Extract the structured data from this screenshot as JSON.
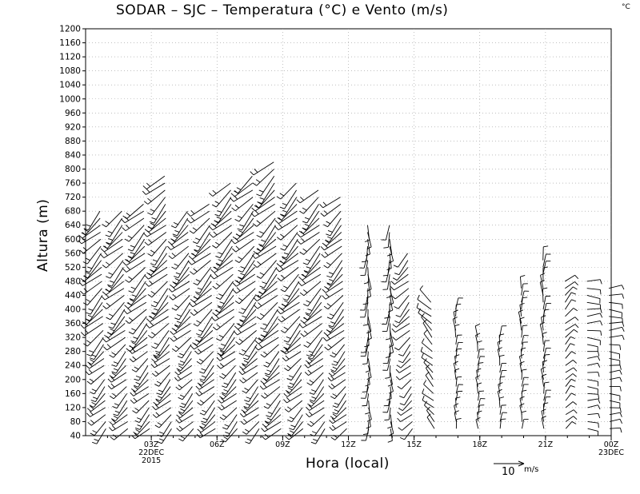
{
  "chart_data": {
    "type": "wind-barb",
    "title": "SODAR – SJC – Temperatura (°C) e Vento (m/s)",
    "corner_unit": "°C",
    "xlabel": "Hora (local)",
    "ylabel": "Altura (m)",
    "ylim": [
      40,
      1200
    ],
    "y_ticks": [
      40,
      80,
      120,
      160,
      200,
      240,
      280,
      320,
      360,
      400,
      440,
      480,
      520,
      560,
      600,
      640,
      680,
      720,
      760,
      800,
      840,
      880,
      920,
      960,
      1000,
      1040,
      1080,
      1120,
      1160,
      1200
    ],
    "xlim_hours": [
      0,
      24
    ],
    "x_ticks": [
      {
        "hour": 3,
        "label": "03Z",
        "sub": [
          "22DEC",
          "2015"
        ]
      },
      {
        "hour": 6,
        "label": "06Z",
        "sub": []
      },
      {
        "hour": 9,
        "label": "09Z",
        "sub": []
      },
      {
        "hour": 12,
        "label": "12Z",
        "sub": []
      },
      {
        "hour": 15,
        "label": "15Z",
        "sub": []
      },
      {
        "hour": 18,
        "label": "18Z",
        "sub": []
      },
      {
        "hour": 21,
        "label": "21Z",
        "sub": []
      },
      {
        "hour": 24,
        "label": "00Z",
        "sub": [
          "23DEC"
        ]
      }
    ],
    "grid": true,
    "reference_vector": {
      "speed": 10,
      "label": "10",
      "unit": "m/s"
    },
    "profiles": [
      {
        "hour": 1,
        "top": 680,
        "dir": "SW",
        "speed": 9
      },
      {
        "hour": 2,
        "top": 680,
        "dir": "SW",
        "speed": 9
      },
      {
        "hour": 3,
        "top": 700,
        "dir": "SW",
        "speed": 9
      },
      {
        "hour": 4,
        "top": 780,
        "dir": "SW",
        "speed": 9
      },
      {
        "hour": 5,
        "top": 680,
        "dir": "SW",
        "speed": 8
      },
      {
        "hour": 6,
        "top": 700,
        "dir": "SW",
        "speed": 9
      },
      {
        "hour": 7,
        "top": 760,
        "dir": "SW",
        "speed": 9
      },
      {
        "hour": 8,
        "top": 780,
        "dir": "SW",
        "speed": 9
      },
      {
        "hour": 9,
        "top": 820,
        "dir": "SW",
        "speed": 10
      },
      {
        "hour": 10,
        "top": 760,
        "dir": "SW",
        "speed": 9
      },
      {
        "hour": 11,
        "top": 740,
        "dir": "SW",
        "speed": 9
      },
      {
        "hour": 12,
        "top": 720,
        "dir": "SW",
        "speed": 8
      },
      {
        "hour": 13,
        "top": 640,
        "dir": "S",
        "speed": 5
      },
      {
        "hour": 14,
        "top": 640,
        "dir": "S",
        "speed": 5
      },
      {
        "hour": 15,
        "top": 560,
        "dir": "SW",
        "speed": 6
      },
      {
        "hour": 16,
        "top": 420,
        "dir": "NW",
        "speed": 6
      },
      {
        "hour": 17,
        "top": 400,
        "dir": "N",
        "speed": 3
      },
      {
        "hour": 18,
        "top": 320,
        "dir": "N",
        "speed": 3
      },
      {
        "hour": 19,
        "top": 320,
        "dir": "N",
        "speed": 3
      },
      {
        "hour": 20,
        "top": 460,
        "dir": "N",
        "speed": 3
      },
      {
        "hour": 21,
        "top": 540,
        "dir": "N",
        "speed": 4
      },
      {
        "hour": 22,
        "top": 480,
        "dir": "NE",
        "speed": 3
      },
      {
        "hour": 23,
        "top": 480,
        "dir": "E",
        "speed": 4
      },
      {
        "hour": 24,
        "top": 460,
        "dir": "E",
        "speed": 4
      }
    ]
  }
}
